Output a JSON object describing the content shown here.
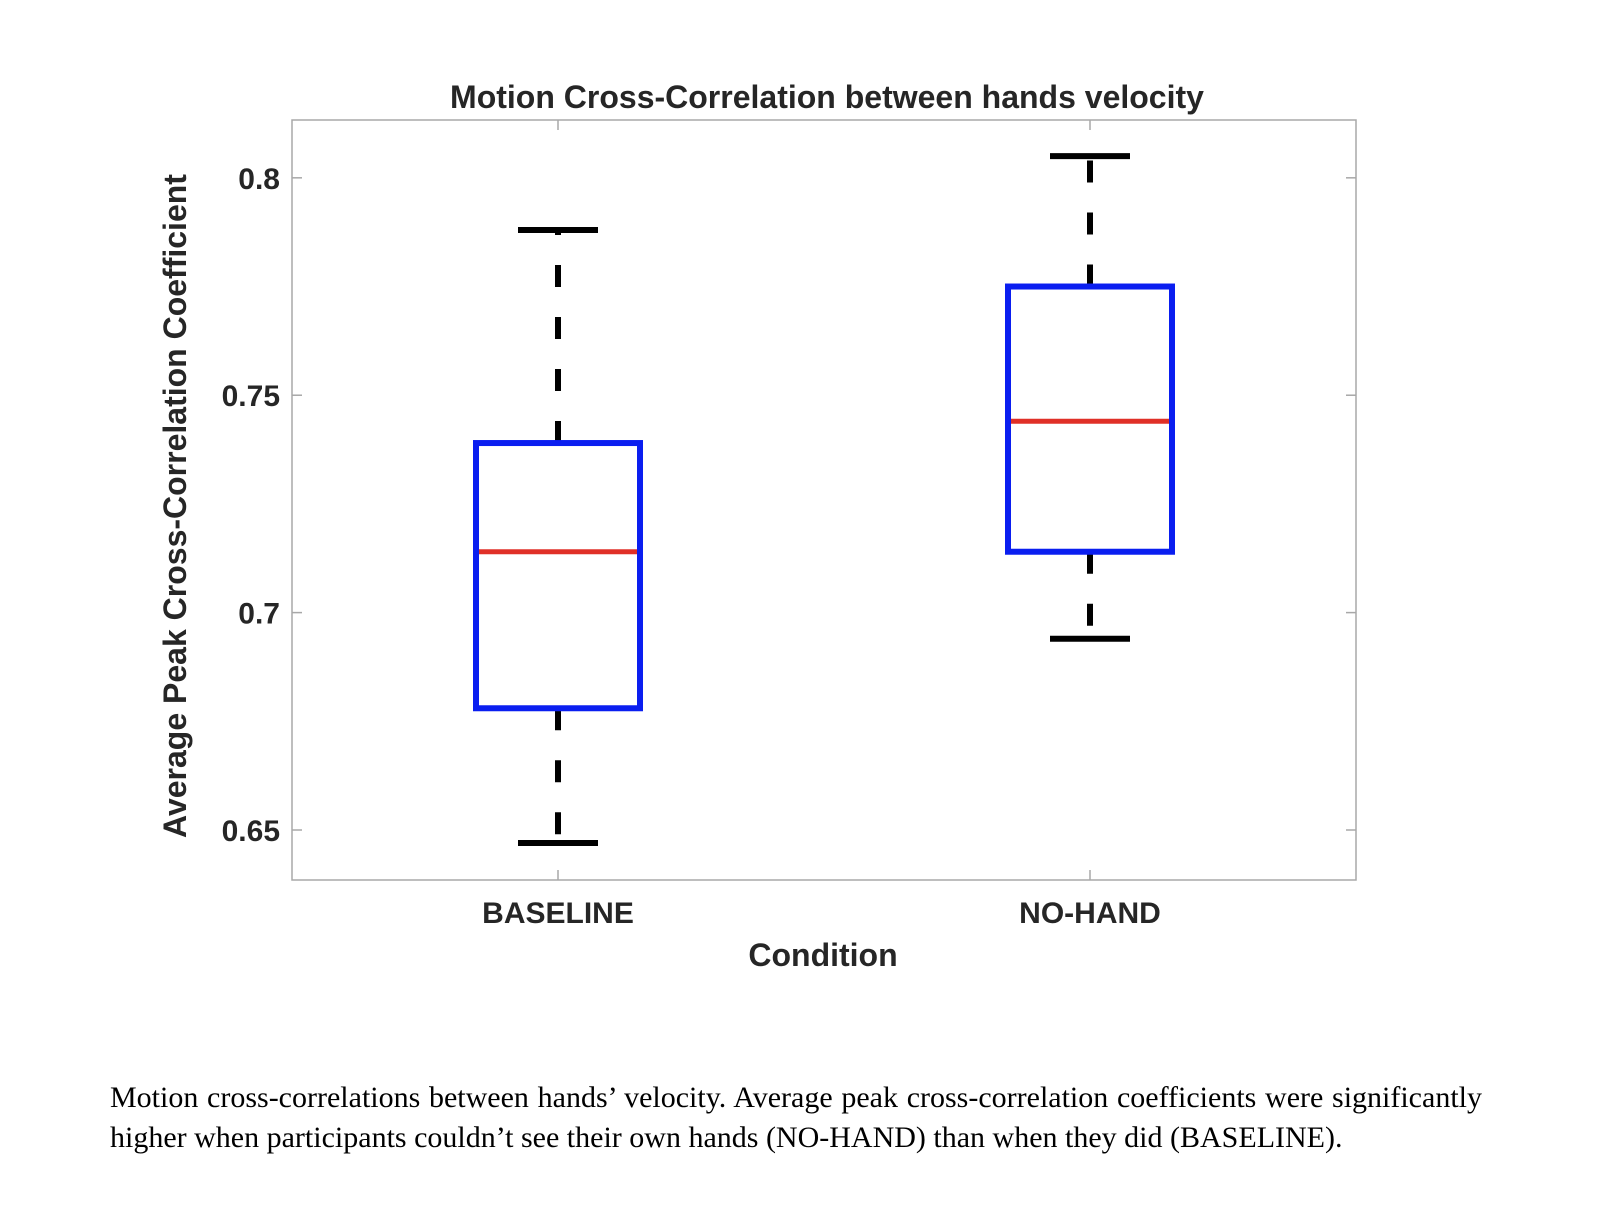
{
  "chart_data": {
    "type": "boxplot",
    "title": "Motion Cross-Correlation between hands velocity",
    "xlabel": "Condition",
    "ylabel": "Average Peak Cross-Correlation Coefficient",
    "categories": [
      "BASELINE",
      "NO-HAND"
    ],
    "ylim": [
      0.6385,
      0.8133
    ],
    "yticks": [
      0.65,
      0.7,
      0.75,
      0.8
    ],
    "ytick_labels": [
      "0.65",
      "0.7",
      "0.75",
      "0.8"
    ],
    "grid": false,
    "boxes": [
      {
        "category": "BASELINE",
        "whisker_low": 0.647,
        "q1": 0.678,
        "median": 0.714,
        "q3": 0.739,
        "whisker_high": 0.788
      },
      {
        "category": "NO-HAND",
        "whisker_low": 0.694,
        "q1": 0.714,
        "median": 0.744,
        "q3": 0.775,
        "whisker_high": 0.805
      }
    ],
    "colors": {
      "box": "#0a1ef0",
      "median": "#e03028",
      "whisker": "#000000",
      "axis": "#a0a0a0"
    }
  },
  "caption": "Motion cross-correlations between hands’ velocity. Average peak cross-correlation coefficients were significantly higher when participants couldn’t see their own hands (NO-HAND) than when they did (BASELINE)."
}
